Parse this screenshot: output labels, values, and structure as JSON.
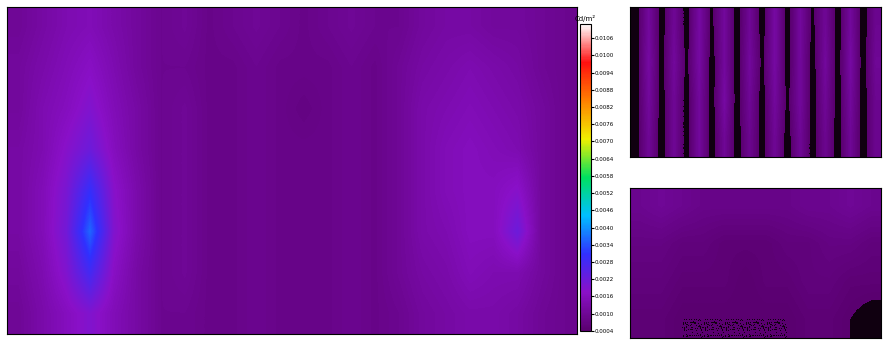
{
  "chart_data": [
    {
      "type": "heatmap",
      "tick_labels": false,
      "cells": [
        [
          0.001,
          0.0012,
          0.0014,
          0.0015,
          0.0013,
          0.0011,
          0.0009,
          0.001,
          0.0008,
          0.0009,
          0.001,
          0.0009,
          0.0008,
          0.0009,
          0.001,
          0.0009,
          0.0009,
          0.0011,
          0.0012,
          0.0012,
          0.0011,
          0.0011,
          0.001,
          0.0009
        ],
        [
          0.0011,
          0.0013,
          0.0015,
          0.0017,
          0.0014,
          0.0011,
          0.0009,
          0.0009,
          0.0008,
          0.0008,
          0.0009,
          0.0008,
          0.0008,
          0.0008,
          0.0009,
          0.0008,
          0.001,
          0.0012,
          0.0013,
          0.0014,
          0.0013,
          0.0012,
          0.001,
          0.0009
        ],
        [
          0.0011,
          0.0014,
          0.0016,
          0.0019,
          0.0015,
          0.0012,
          0.0009,
          0.001,
          0.0008,
          0.0008,
          0.0009,
          0.0008,
          0.0007,
          0.0008,
          0.0009,
          0.0008,
          0.001,
          0.0013,
          0.0014,
          0.0015,
          0.0014,
          0.0013,
          0.0011,
          0.0009
        ],
        [
          0.0012,
          0.0014,
          0.0018,
          0.0022,
          0.0016,
          0.0012,
          0.0009,
          0.001,
          0.0008,
          0.0008,
          0.0009,
          0.0008,
          0.0008,
          0.0008,
          0.0009,
          0.0008,
          0.001,
          0.0013,
          0.0015,
          0.0016,
          0.0015,
          0.0014,
          0.0011,
          0.0009
        ],
        [
          0.0012,
          0.0015,
          0.002,
          0.003,
          0.0018,
          0.0013,
          0.0009,
          0.001,
          0.0008,
          0.0008,
          0.0009,
          0.0008,
          0.0008,
          0.0008,
          0.0009,
          0.0008,
          0.001,
          0.0013,
          0.0015,
          0.0016,
          0.0016,
          0.0018,
          0.0011,
          0.0009
        ],
        [
          0.0012,
          0.0015,
          0.0021,
          0.0036,
          0.0019,
          0.0013,
          0.0009,
          0.001,
          0.0008,
          0.0008,
          0.0009,
          0.0008,
          0.0008,
          0.0008,
          0.0009,
          0.0008,
          0.001,
          0.0013,
          0.0014,
          0.0016,
          0.0016,
          0.0022,
          0.0011,
          0.0009
        ],
        [
          0.0011,
          0.0014,
          0.0019,
          0.0028,
          0.0017,
          0.0012,
          0.0009,
          0.001,
          0.0008,
          0.0008,
          0.0009,
          0.0008,
          0.0008,
          0.0008,
          0.0009,
          0.0008,
          0.001,
          0.0012,
          0.0013,
          0.0015,
          0.0014,
          0.0014,
          0.0011,
          0.0009
        ],
        [
          0.001,
          0.0013,
          0.0016,
          0.0019,
          0.0015,
          0.0012,
          0.0009,
          0.0009,
          0.0008,
          0.0008,
          0.0009,
          0.0008,
          0.0008,
          0.0008,
          0.0009,
          0.0008,
          0.0009,
          0.0011,
          0.0012,
          0.0013,
          0.0013,
          0.0012,
          0.001,
          0.0009
        ]
      ],
      "colorbar": {
        "label": "Cd/m²",
        "range": [
          0.0004,
          0.0111
        ],
        "ticks": [
          0.0004,
          {
            "value": 0.001,
            "label": "0.0010"
          },
          0.0016,
          0.0022,
          0.0028,
          0.0034,
          {
            "value": 0.004,
            "label": "0.0040"
          },
          0.0046,
          0.0052,
          0.0058,
          0.0064,
          {
            "value": 0.007,
            "label": "0.0070"
          },
          0.0076,
          0.0082,
          0.0088,
          0.0094,
          {
            "value": 0.01,
            "label": "0.0100"
          },
          0.0106
        ]
      }
    },
    {
      "type": "heatmap",
      "tick_labels": false,
      "cells": [
        [
          0.0002,
          0.0011,
          0.0002,
          0.001,
          0.0002,
          0.0012,
          0.0003,
          0.0011,
          0.0002,
          0.001,
          0.0002,
          0.0012,
          0.0002,
          0.0011,
          0.0003,
          0.001,
          0.0002,
          0.0011,
          0.0002,
          0.0009
        ],
        [
          0.0002,
          0.0012,
          0.0002,
          0.0011,
          0.0003,
          0.0012,
          0.0002,
          0.0011,
          0.0002,
          0.0011,
          0.0003,
          0.0012,
          0.0002,
          0.0011,
          0.0002,
          0.0011,
          0.0002,
          0.0012,
          0.0002,
          0.001
        ],
        [
          0.0002,
          0.0011,
          0.0002,
          0.001,
          0.0002,
          0.0011,
          0.0002,
          0.0012,
          0.0002,
          0.001,
          0.0002,
          0.0011,
          0.0003,
          0.0011,
          0.0002,
          0.001,
          0.0002,
          0.0011,
          0.0002,
          0.0009
        ],
        [
          0.0002,
          0.001,
          0.0002,
          0.001,
          0.0002,
          0.0011,
          0.0002,
          0.001,
          0.0002,
          0.0009,
          0.0002,
          0.001,
          0.0002,
          0.001,
          0.0002,
          0.0009,
          0.0002,
          0.001,
          0.0002,
          0.0009
        ]
      ]
    },
    {
      "type": "heatmap",
      "tick_labels": false,
      "cells": [
        [
          0.0009,
          0.001,
          0.0009,
          0.0008,
          0.0008,
          0.0008,
          0.0008,
          0.0008,
          0.0009,
          0.0009,
          0.001,
          0.0009
        ],
        [
          0.0007,
          0.0007,
          0.0006,
          0.0006,
          0.0005,
          0.0005,
          0.0005,
          0.0006,
          0.0006,
          0.0007,
          0.0007,
          0.0006
        ],
        [
          0.0006,
          0.0006,
          0.0005,
          0.0005,
          0.0005,
          0.0004,
          0.0005,
          0.0005,
          0.0006,
          0.0006,
          0.0005,
          0.0005
        ],
        [
          0.0005,
          0.0005,
          0.0004,
          0.0004,
          0.0004,
          0.0004,
          0.0004,
          0.0004,
          0.0005,
          0.0005,
          0.0004,
          0.0003
        ]
      ]
    }
  ]
}
